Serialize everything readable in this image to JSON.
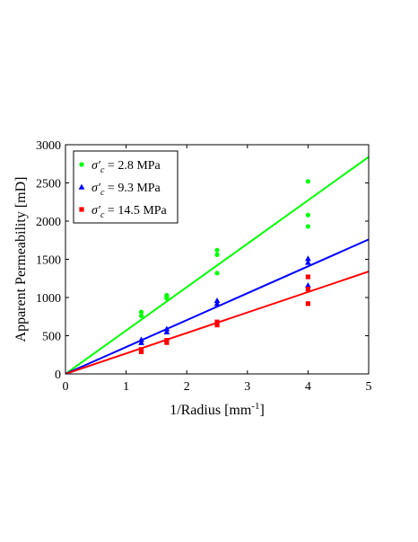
{
  "chart_data": {
    "type": "scatter",
    "xlabel_main": "1/Radius [mm",
    "xlabel_sup": "-1",
    "xlabel_end": "]",
    "ylabel": "Apparent Permeability [mD]",
    "xlim": [
      0,
      5
    ],
    "ylim": [
      0,
      3000
    ],
    "xticks": [
      0,
      1,
      2,
      3,
      4,
      5
    ],
    "yticks": [
      0,
      500,
      1000,
      1500,
      2000,
      2500,
      3000
    ],
    "xtick_labels": [
      "0",
      "1",
      "2",
      "3",
      "4",
      "5"
    ],
    "ytick_labels": [
      "0",
      "500",
      "1000",
      "1500",
      "2000",
      "2500",
      "3000"
    ],
    "grid": false,
    "legend_position": "top-left",
    "series": [
      {
        "name_symbol": "σ′",
        "name_sub": "c",
        "name_value": " = 2.8 MPa",
        "color": "#00ff00",
        "marker": "circle",
        "points": [
          {
            "x": 1.25,
            "y": 760
          },
          {
            "x": 1.25,
            "y": 810
          },
          {
            "x": 1.67,
            "y": 990
          },
          {
            "x": 1.67,
            "y": 1010
          },
          {
            "x": 1.67,
            "y": 1030
          },
          {
            "x": 2.5,
            "y": 1320
          },
          {
            "x": 2.5,
            "y": 1560
          },
          {
            "x": 2.5,
            "y": 1620
          },
          {
            "x": 4.0,
            "y": 1930
          },
          {
            "x": 4.0,
            "y": 2080
          },
          {
            "x": 4.0,
            "y": 2520
          }
        ],
        "fit_line": {
          "x": [
            0,
            5
          ],
          "y": [
            0,
            2840
          ]
        }
      },
      {
        "name_symbol": "σ′",
        "name_sub": "c",
        "name_value": " = 9.3 MPa",
        "color": "#0000ff",
        "marker": "triangle",
        "points": [
          {
            "x": 1.25,
            "y": 410
          },
          {
            "x": 1.25,
            "y": 450
          },
          {
            "x": 1.67,
            "y": 550
          },
          {
            "x": 1.67,
            "y": 590
          },
          {
            "x": 2.5,
            "y": 920
          },
          {
            "x": 2.5,
            "y": 960
          },
          {
            "x": 4.0,
            "y": 1160
          },
          {
            "x": 4.0,
            "y": 1460
          },
          {
            "x": 4.0,
            "y": 1510
          }
        ],
        "fit_line": {
          "x": [
            0,
            5
          ],
          "y": [
            0,
            1760
          ]
        }
      },
      {
        "name_symbol": "σ′",
        "name_sub": "c",
        "name_value": " = 14.5 MPa",
        "color": "#ff0000",
        "marker": "square",
        "points": [
          {
            "x": 1.25,
            "y": 290
          },
          {
            "x": 1.25,
            "y": 320
          },
          {
            "x": 1.67,
            "y": 410
          },
          {
            "x": 1.67,
            "y": 440
          },
          {
            "x": 2.5,
            "y": 640
          },
          {
            "x": 2.5,
            "y": 680
          },
          {
            "x": 4.0,
            "y": 920
          },
          {
            "x": 4.0,
            "y": 1110
          },
          {
            "x": 4.0,
            "y": 1270
          }
        ],
        "fit_line": {
          "x": [
            0,
            5
          ],
          "y": [
            0,
            1340
          ]
        }
      }
    ]
  }
}
